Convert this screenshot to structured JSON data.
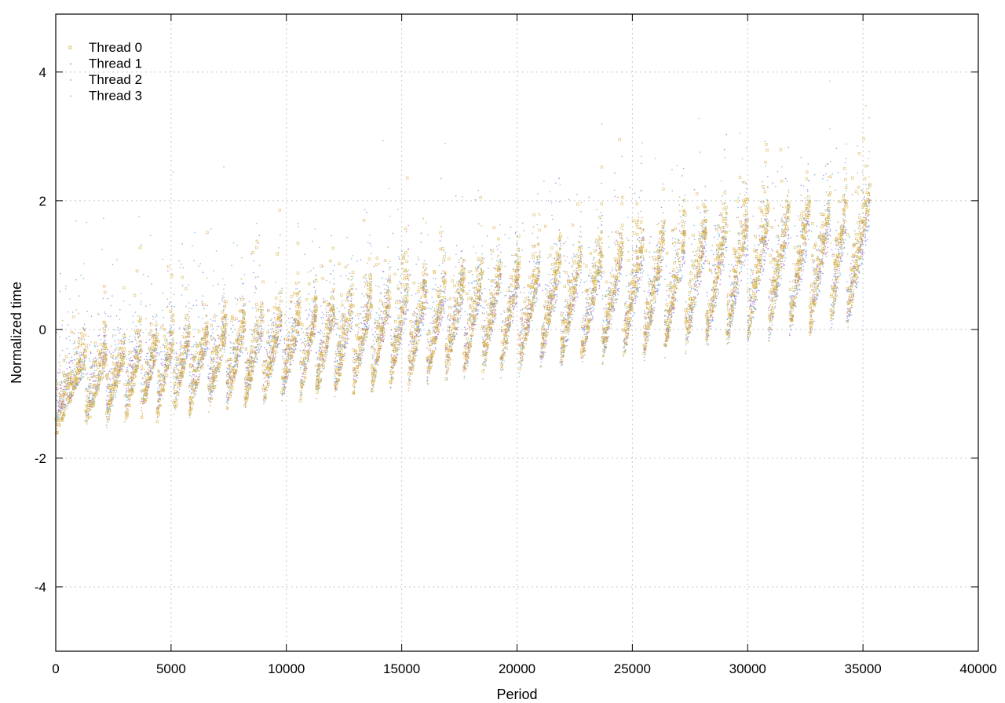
{
  "chart_data": {
    "type": "scatter",
    "title": "",
    "xlabel": "Period",
    "ylabel": "Normalized time",
    "xlim": [
      0,
      40000
    ],
    "ylim": [
      -5,
      4.9
    ],
    "x_ticks": [
      0,
      5000,
      10000,
      15000,
      20000,
      25000,
      30000,
      35000,
      40000
    ],
    "y_ticks": [
      -4,
      -2,
      0,
      2,
      4
    ],
    "grid": true,
    "legend_position": "top-left",
    "segments": {
      "description_hidden": "",
      "starts": [
        0,
        1300,
        2200,
        3000,
        3700,
        4400,
        5100,
        5800,
        6600,
        7400,
        8200,
        9000,
        9800,
        10600,
        11300,
        12100,
        12900,
        13700,
        14500,
        15300,
        16100,
        16900,
        17700,
        18500,
        19300,
        20100,
        21000,
        21900,
        22800,
        23700,
        24600,
        25500,
        26400,
        27300,
        28200,
        29100,
        30000,
        30900,
        31800,
        32700,
        33600,
        34300
      ],
      "end": 35300
    },
    "series": [
      {
        "name": "Thread 0",
        "color": "#d9b34a",
        "marker": "square",
        "baseline_start": -1.55,
        "baseline_end": 0.15,
        "ramp": 1.6,
        "spread": 0.9
      },
      {
        "name": "Thread 1",
        "color": "#a46ad4",
        "marker": "dot",
        "baseline_start": -1.4,
        "baseline_end": 0.1,
        "ramp": 1.3,
        "spread": 1.1
      },
      {
        "name": "Thread 2",
        "color": "#5fa8d8",
        "marker": "dot",
        "baseline_start": -1.5,
        "baseline_end": 0.0,
        "ramp": 1.4,
        "spread": 1.4
      },
      {
        "name": "Thread 3",
        "color": "#c9a032",
        "marker": "dot",
        "baseline_start": -1.55,
        "baseline_end": 0.05,
        "ramp": 1.7,
        "spread": 0.8
      }
    ]
  },
  "icons": {
    "legend_markers": [
      "square-marker-icon",
      "dot-marker-icon",
      "dot-marker-icon",
      "dot-marker-icon"
    ]
  }
}
